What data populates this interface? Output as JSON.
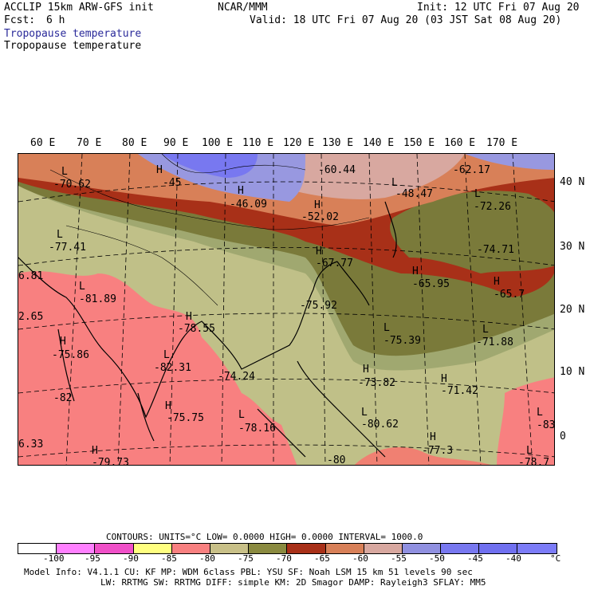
{
  "header": {
    "model": "ACCLIP 15km ARW-GFS init",
    "fcst_label": "Fcst:",
    "fcst_value": "6 h",
    "org": "NCAR/MMM",
    "init": "Init: 12 UTC Fri 07 Aug 20",
    "valid": "Valid: 18 UTC Fri 07 Aug 20 (03 JST Sat 08 Aug 20)",
    "field_colored": "Tropopause temperature",
    "field_contour": "Tropopause temperature"
  },
  "map": {
    "lon_labels": [
      "60 E",
      "70 E",
      "80 E",
      "90 E",
      "100 E",
      "110 E",
      "120 E",
      "130 E",
      "140 E",
      "150 E",
      "160 E",
      "170 E"
    ],
    "lat_labels": [
      "40 N",
      "30 N",
      "20 N",
      "10 N",
      "0"
    ],
    "annotations": [
      {
        "text": "L",
        "kind": "low"
      },
      {
        "text": "-70.62",
        "kind": "value"
      },
      {
        "text": "H",
        "kind": "high"
      },
      {
        "text": "-45",
        "kind": "value"
      },
      {
        "text": "-60.44",
        "kind": "value"
      },
      {
        "text": "-62.17",
        "kind": "value"
      },
      {
        "text": "H",
        "kind": "high"
      },
      {
        "text": "-46.09",
        "kind": "value"
      },
      {
        "text": "L",
        "kind": "low"
      },
      {
        "text": "-48.47",
        "kind": "value"
      },
      {
        "text": "H",
        "kind": "high"
      },
      {
        "text": "-52.02",
        "kind": "value"
      },
      {
        "text": "L",
        "kind": "low"
      },
      {
        "text": "-72.26",
        "kind": "value"
      },
      {
        "text": "L",
        "kind": "low"
      },
      {
        "text": "-77.41",
        "kind": "value"
      },
      {
        "text": "-74.71",
        "kind": "value"
      },
      {
        "text": "H",
        "kind": "high"
      },
      {
        "text": "-67.77",
        "kind": "value"
      },
      {
        "text": "6.81",
        "kind": "value"
      },
      {
        "text": "H",
        "kind": "high"
      },
      {
        "text": "-65.95",
        "kind": "value"
      },
      {
        "text": "H",
        "kind": "high"
      },
      {
        "text": "-65.7",
        "kind": "value"
      },
      {
        "text": "L",
        "kind": "low"
      },
      {
        "text": "-81.89",
        "kind": "value"
      },
      {
        "text": "-75.92",
        "kind": "value"
      },
      {
        "text": "2.65",
        "kind": "value"
      },
      {
        "text": "H",
        "kind": "high"
      },
      {
        "text": "-78.55",
        "kind": "value"
      },
      {
        "text": "L",
        "kind": "low"
      },
      {
        "text": "-75.39",
        "kind": "value"
      },
      {
        "text": "H",
        "kind": "high"
      },
      {
        "text": "-75.86",
        "kind": "value"
      },
      {
        "text": "L",
        "kind": "low"
      },
      {
        "text": "-71.88",
        "kind": "value"
      },
      {
        "text": "L",
        "kind": "low"
      },
      {
        "text": "-82.31",
        "kind": "value"
      },
      {
        "text": "-74.24",
        "kind": "value"
      },
      {
        "text": "H",
        "kind": "high"
      },
      {
        "text": "-73.82",
        "kind": "value"
      },
      {
        "text": "H",
        "kind": "high"
      },
      {
        "text": "-71.42",
        "kind": "value"
      },
      {
        "text": "-82",
        "kind": "value"
      },
      {
        "text": "H",
        "kind": "high"
      },
      {
        "text": "-75.75",
        "kind": "value"
      },
      {
        "text": "L",
        "kind": "low"
      },
      {
        "text": "-78.16",
        "kind": "value"
      },
      {
        "text": "L",
        "kind": "low"
      },
      {
        "text": "-80.62",
        "kind": "value"
      },
      {
        "text": "L",
        "kind": "low"
      },
      {
        "text": "-83",
        "kind": "value"
      },
      {
        "text": "H",
        "kind": "high"
      },
      {
        "text": "-77.3",
        "kind": "value"
      },
      {
        "text": "6.33",
        "kind": "value"
      },
      {
        "text": "H",
        "kind": "high"
      },
      {
        "text": "-79.73",
        "kind": "value"
      },
      {
        "text": "-80",
        "kind": "value"
      },
      {
        "text": "L",
        "kind": "low"
      },
      {
        "text": "-78.7",
        "kind": "value"
      }
    ],
    "band_colors": {
      "n90": "#ffff80",
      "n85": "#f88080",
      "n80": "#f08072",
      "n75": "#c0c088",
      "n70": "#a0a870",
      "n65": "#7a7a3a",
      "n60": "#a83018",
      "n55": "#d88058",
      "n50": "#d8a8a0",
      "n45": "#9898e0",
      "n40": "#7878f0"
    }
  },
  "footer": {
    "contours_line": "CONTOURS:  UNITS=°C  LOW=  0.0000      HIGH=  0.0000      INTERVAL=   1000.0",
    "legend_colors": [
      "#ffffff",
      "#ff80ff",
      "#f050c8",
      "#ffff80",
      "#f88080",
      "#c8c088",
      "#8a8a40",
      "#a83018",
      "#d88058",
      "#d8a8a0",
      "#9090e0",
      "#7878f0",
      "#7070f0",
      "#7c7cf8"
    ],
    "legend_ticks": [
      "-100",
      "-95",
      "-90",
      "-85",
      "-80",
      "-75",
      "-70",
      "-65",
      "-60",
      "-55",
      "-50",
      "-45",
      "-40",
      "°C"
    ],
    "model_info_1": "Model Info: V4.1.1    CU: KF      MP: WDM 6class  PBL: YSU        SF: Noah LSM    15 km   51 levels   90 sec",
    "model_info_2": "LW: RRTMG    SW: RRTMG  DIFF: simple KM: 2D Smagor DAMP: Rayleigh3  SFLAY: MM5"
  }
}
